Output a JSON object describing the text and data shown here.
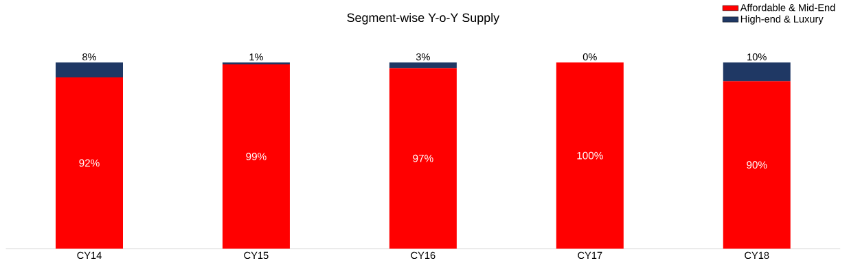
{
  "chart_data": {
    "type": "bar",
    "title": "Segment-wise Y-o-Y Supply",
    "stacked": true,
    "legend": "top right",
    "categories": [
      "CY14",
      "CY15",
      "CY16",
      "CY17",
      "CY18"
    ],
    "series": [
      {
        "name": "Affordable & Mid-End",
        "color": "#ff0000",
        "values": [
          92,
          99,
          97,
          100,
          90
        ],
        "value_labels": [
          "92%",
          "99%",
          "97%",
          "100%",
          "90%"
        ]
      },
      {
        "name": "High-end & Luxury",
        "color": "#1f3864",
        "values": [
          8,
          1,
          3,
          0,
          10
        ],
        "value_labels": [
          "8%",
          "1%",
          "3%",
          "0%",
          "10%"
        ]
      }
    ]
  }
}
